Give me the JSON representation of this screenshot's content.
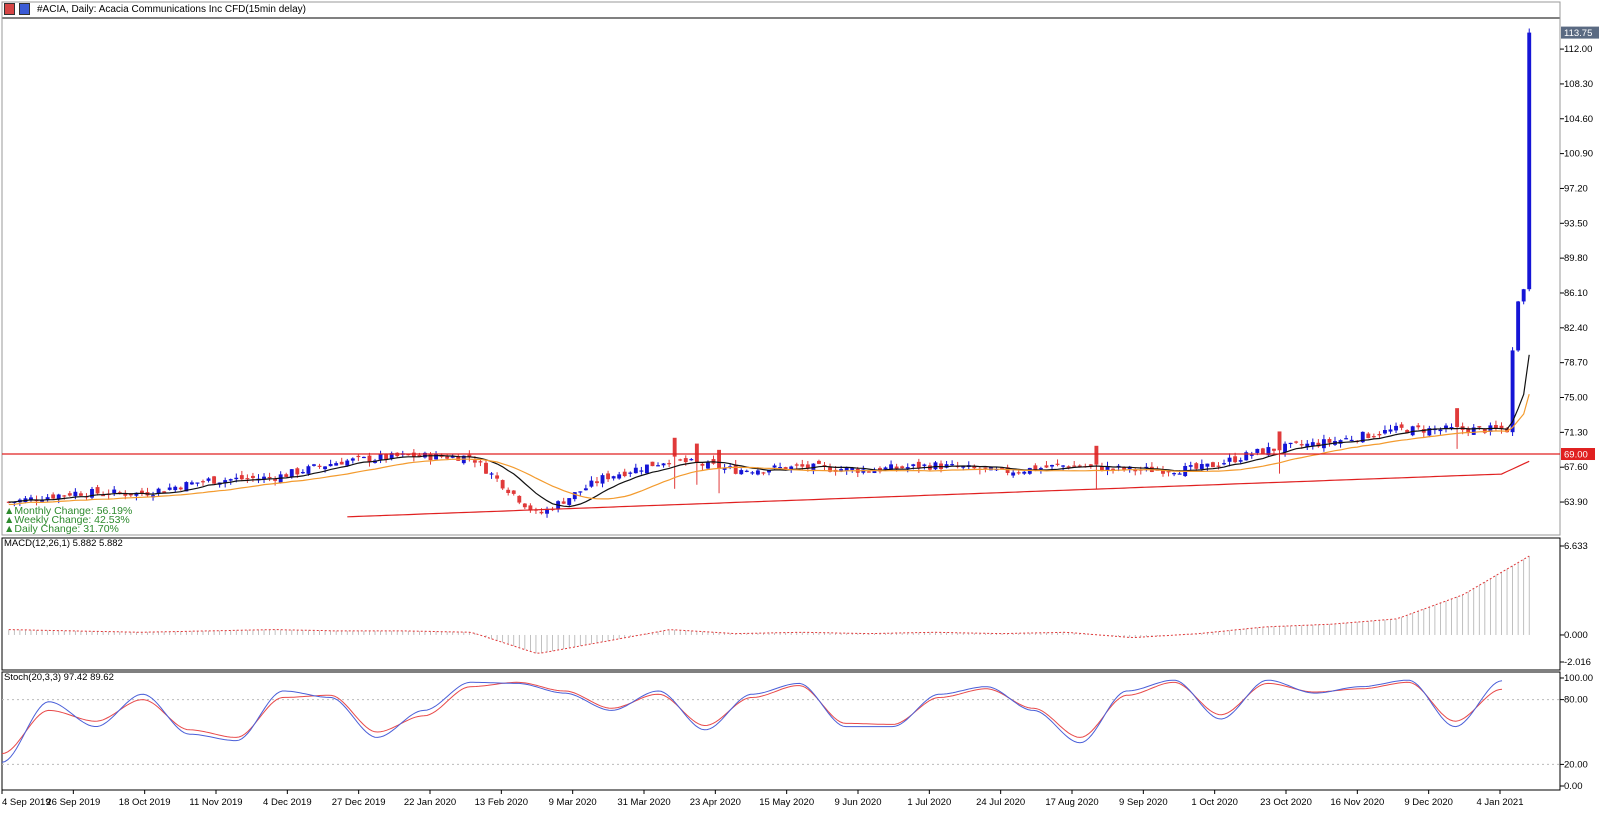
{
  "header": {
    "title": "#ACIA, Daily:  Acacia Communications Inc CFD(15min delay)"
  },
  "stats": {
    "monthly": "▲Monthly Change: 56.19%",
    "weekly": "▲Weekly Change: 42.53%",
    "daily": "▲Daily Change: 31.70%"
  },
  "macd": {
    "label": "MACD(12,26,1) 5.882 5.882"
  },
  "stoch": {
    "label": "Stoch(20,3,3) 97.42 89.62"
  },
  "colors": {
    "bull": "#1515d6",
    "bear": "#e03a3a",
    "ma_fast": "#111111",
    "ma_mid": "#f39b2e",
    "ma_slow": "#e02020",
    "hline": "#e02020",
    "stoch_main": "#4a5fd8",
    "stoch_signal": "#e84a4a"
  },
  "chart_data": {
    "type": "candlestick",
    "x_labels": [
      "4 Sep 2019",
      "26 Sep 2019",
      "18 Oct 2019",
      "11 Nov 2019",
      "4 Dec 2019",
      "27 Dec 2019",
      "22 Jan 2020",
      "13 Feb 2020",
      "9 Mar 2020",
      "31 Mar 2020",
      "23 Apr 2020",
      "15 May 2020",
      "9 Jun 2020",
      "1 Jul 2020",
      "24 Jul 2020",
      "17 Aug 2020",
      "9 Sep 2020",
      "1 Oct 2020",
      "23 Oct 2020",
      "16 Nov 2020",
      "9 Dec 2020",
      "4 Jan 2021"
    ],
    "price_axis": {
      "ticks": [
        "112.00",
        "108.30",
        "104.60",
        "100.90",
        "97.20",
        "93.50",
        "89.80",
        "86.10",
        "82.40",
        "78.70",
        "75.00",
        "71.30",
        "67.60",
        "63.90"
      ],
      "range": [
        60.4,
        115.3
      ]
    },
    "last_price": "113.75",
    "horizontal_line": {
      "value": 69.0,
      "label": "69.00"
    },
    "price_series": [
      {
        "d": "4 Sep 2019",
        "c": 63.9
      },
      {
        "d": "26 Sep 2019",
        "c": 64.9
      },
      {
        "d": "18 Oct 2019",
        "c": 64.8
      },
      {
        "d": "11 Nov 2019",
        "c": 66.2
      },
      {
        "d": "4 Dec 2019",
        "c": 66.5
      },
      {
        "d": "27 Dec 2019",
        "c": 68.2
      },
      {
        "d": "22 Jan 2020",
        "c": 68.8
      },
      {
        "d": "13 Feb 2020",
        "c": 68.7
      },
      {
        "d": "9 Mar 2020",
        "c": 62.5
      },
      {
        "d": "31 Mar 2020",
        "c": 66.5
      },
      {
        "d": "23 Apr 2020",
        "c": 68.4
      },
      {
        "d": "15 May 2020",
        "c": 67.3
      },
      {
        "d": "9 Jun 2020",
        "c": 67.6
      },
      {
        "d": "1 Jul 2020",
        "c": 67.3
      },
      {
        "d": "24 Jul 2020",
        "c": 67.8
      },
      {
        "d": "17 Aug 2020",
        "c": 67.1
      },
      {
        "d": "9 Sep 2020",
        "c": 67.8
      },
      {
        "d": "1 Oct 2020",
        "c": 67.3
      },
      {
        "d": "23 Oct 2020",
        "c": 67.4
      },
      {
        "d": "16 Nov 2020",
        "c": 69.4
      },
      {
        "d": "9 Dec 2020",
        "c": 70.3
      },
      {
        "d": "4 Jan 2021",
        "c": 71.6
      },
      {
        "d": "4 Jan 2021",
        "c": 86.5
      },
      {
        "d": "4 Jan 2021",
        "c": 113.75
      }
    ],
    "macd": {
      "ticks": [
        "6.633",
        "0.000",
        "-2.016"
      ],
      "range": [
        -2.016,
        6.633
      ],
      "values": [
        0.4,
        0.3,
        0.2,
        0.3,
        0.4,
        0.3,
        0.3,
        0.2,
        -1.4,
        -0.5,
        0.4,
        0.1,
        0.2,
        0.1,
        0.2,
        0.1,
        0.2,
        -0.2,
        0.1,
        0.6,
        0.8,
        1.2,
        3.0,
        5.882
      ]
    },
    "stoch": {
      "ticks": [
        "100.00",
        "80.00",
        "20.00",
        "0.00"
      ],
      "range": [
        0,
        100
      ],
      "levels": [
        80,
        20
      ],
      "main": [
        22,
        78,
        55,
        85,
        48,
        42,
        88,
        82,
        45,
        70,
        96,
        95,
        86,
        70,
        88,
        52,
        85,
        95,
        55,
        55,
        85,
        92,
        70,
        40,
        88,
        98,
        62,
        98,
        86,
        92,
        98,
        55,
        97.42
      ],
      "signal": [
        30,
        70,
        60,
        80,
        52,
        45,
        82,
        84,
        50,
        65,
        92,
        96,
        88,
        72,
        85,
        56,
        82,
        93,
        58,
        57,
        82,
        90,
        72,
        45,
        84,
        96,
        66,
        95,
        87,
        90,
        96,
        60,
        89.62
      ]
    }
  }
}
